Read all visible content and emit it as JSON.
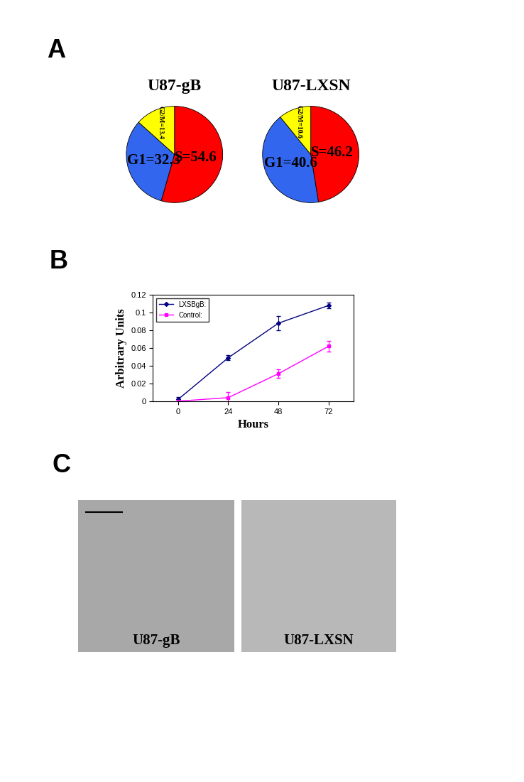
{
  "panel_labels": [
    "A",
    "B",
    "C"
  ],
  "chart_data": [
    {
      "type": "pie",
      "title": "U87-gB",
      "categories": [
        "S",
        "G1",
        "G2/M"
      ],
      "values": [
        54.6,
        32.3,
        13.4
      ],
      "value_labels": [
        "S=54.6",
        "G1=32.3",
        "G2/M=13.4"
      ],
      "colors": [
        "#ff0000",
        "#3366ee",
        "#ffff00"
      ],
      "data_labels": true
    },
    {
      "type": "pie",
      "title": "U87-LXSN",
      "categories": [
        "S",
        "G1",
        "G2/M"
      ],
      "values": [
        46.2,
        40.6,
        10.6
      ],
      "value_labels": [
        "S=46.2",
        "G1=40.6",
        "G2/M=10.6"
      ],
      "colors": [
        "#ff0000",
        "#3366ee",
        "#ffff00"
      ],
      "data_labels": true
    },
    {
      "type": "line",
      "x_label": "Hours",
      "y_label": "Arbitrary Units",
      "x": [
        0,
        24,
        48,
        72
      ],
      "series": [
        {
          "name": "LXSBgB:",
          "color": "#000080",
          "marker": "diamond",
          "values": [
            0.002,
            0.049,
            0.088,
            0.108
          ],
          "errors": [
            0.003,
            0.003,
            0.008,
            0.003
          ]
        },
        {
          "name": "Control:",
          "color": "#ff00ff",
          "marker": "square",
          "values": [
            0,
            0.004,
            0.031,
            0.062
          ],
          "errors": [
            0.002,
            0.006,
            0.005,
            0.006
          ]
        }
      ],
      "xlim": [
        -12,
        84
      ],
      "xticks": [
        0,
        24,
        48,
        72
      ],
      "ylim": [
        0,
        0.12
      ],
      "yticks": [
        0,
        0.02,
        0.04,
        0.06,
        0.08,
        0.1,
        0.12
      ],
      "legend": "upper left"
    },
    {
      "type": "image",
      "title": "U87-gB"
    },
    {
      "type": "image",
      "title": "U87-LXSN"
    }
  ]
}
